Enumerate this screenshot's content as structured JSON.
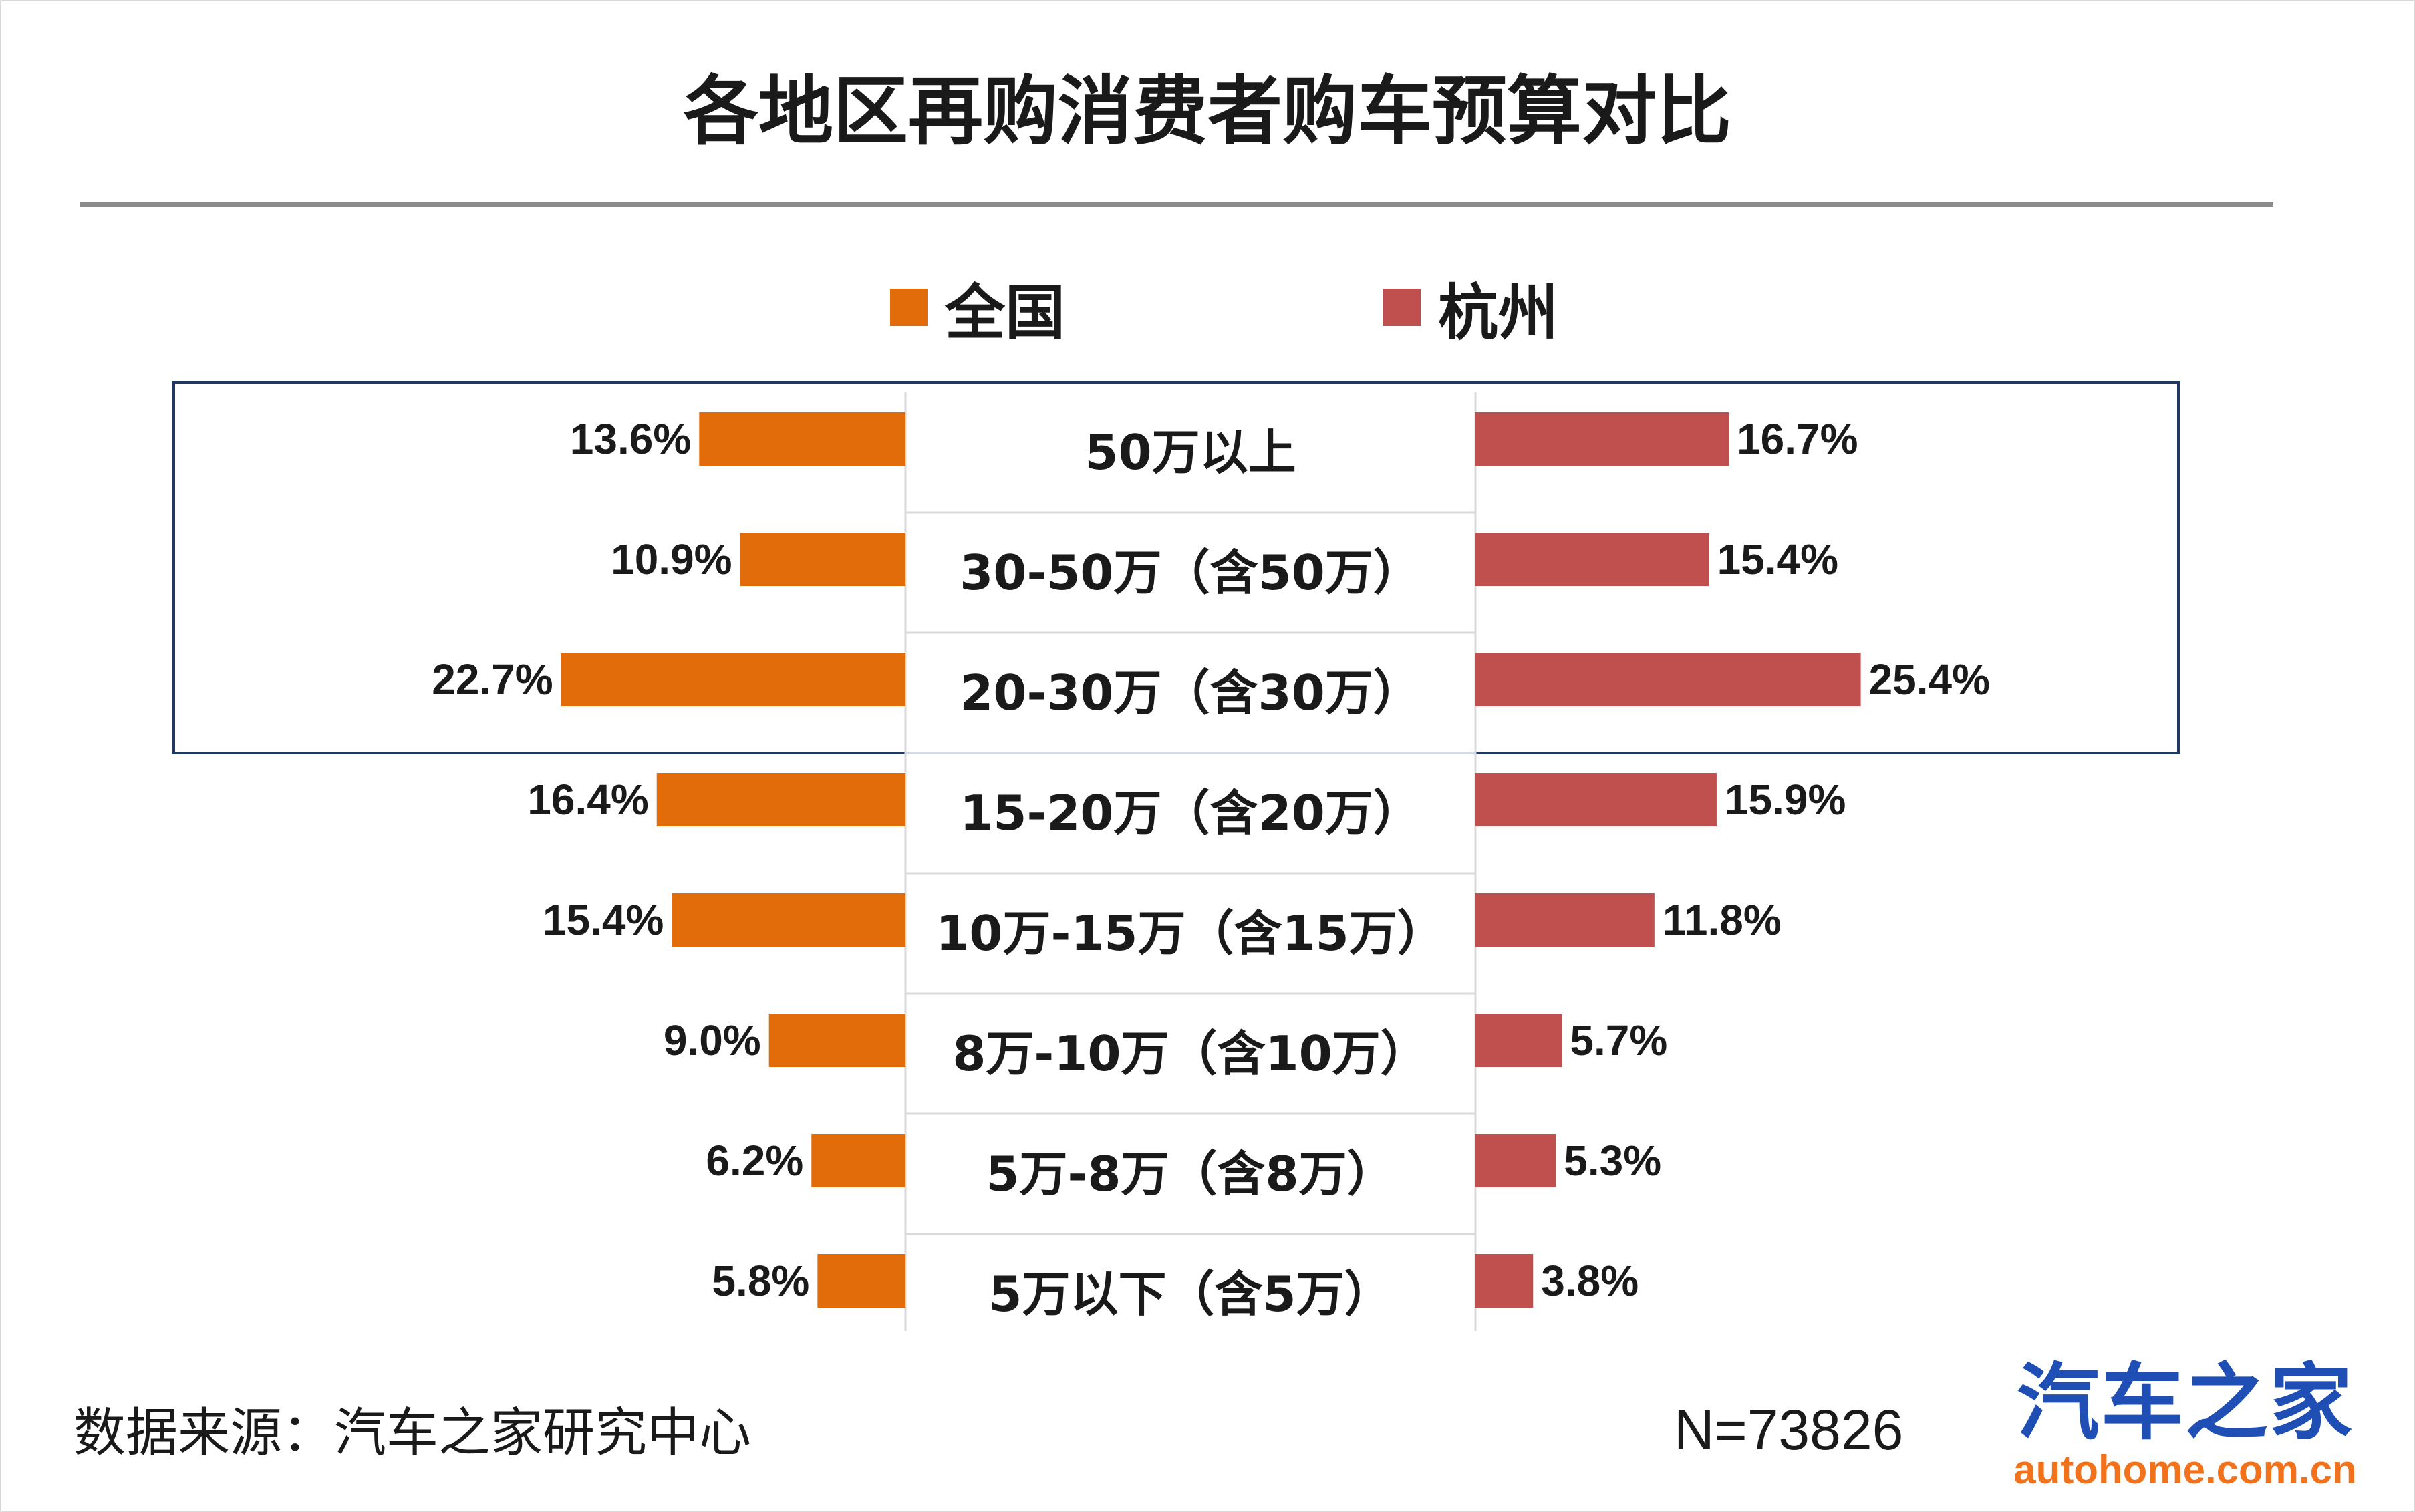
{
  "colors": {
    "national": "#e36c0a",
    "hangzhou": "#c0504d",
    "highlight_border": "#203864"
  },
  "chart_data": {
    "type": "bar",
    "orientation": "horizontal-butterfly",
    "title": "各地区再购消费者购车预算对比",
    "legend_position": "top-center",
    "categories": [
      "50万以上",
      "30-50万（含50万）",
      "20-30万（含30万）",
      "15-20万（含20万）",
      "10万-15万（含15万）",
      "8万-10万（含10万）",
      "5万-8万（含8万）",
      "5万以下（含5万）"
    ],
    "series": [
      {
        "name": "全国",
        "values": [
          13.6,
          10.9,
          22.7,
          16.4,
          15.4,
          9.0,
          6.2,
          5.8
        ],
        "labels": [
          "13.6%",
          "10.9%",
          "22.7%",
          "16.4%",
          "15.4%",
          "9.0%",
          "6.2%",
          "5.8%"
        ]
      },
      {
        "name": "杭州",
        "values": [
          16.7,
          15.4,
          25.4,
          15.9,
          11.8,
          5.7,
          5.3,
          3.8
        ],
        "labels": [
          "16.7%",
          "15.4%",
          "25.4%",
          "15.9%",
          "11.8%",
          "5.7%",
          "5.3%",
          "3.8%"
        ]
      }
    ],
    "highlighted_categories": [
      "50万以上",
      "30-50万（含50万）",
      "20-30万（含30万）"
    ],
    "xlim": [
      0,
      30
    ],
    "grid": false
  },
  "footer": {
    "source": "数据来源：汽车之家研究中心",
    "sample_size": "N=73826"
  },
  "logo": {
    "main": "汽车之家",
    "url": "autohome.com.cn"
  }
}
